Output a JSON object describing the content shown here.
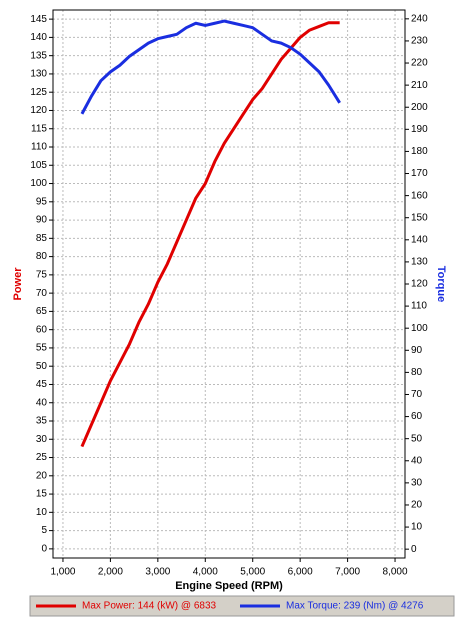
{
  "chart_data": {
    "type": "line",
    "xlabel": "Engine Speed (RPM)",
    "ylabel": "Power",
    "y2label": "Torque",
    "x": [
      1400,
      1600,
      1800,
      2000,
      2200,
      2400,
      2600,
      2800,
      3000,
      3200,
      3400,
      3600,
      3800,
      4000,
      4200,
      4400,
      4600,
      4800,
      5000,
      5200,
      5400,
      5600,
      5800,
      6000,
      6200,
      6400,
      6600,
      6833
    ],
    "series": [
      {
        "name": "Max Power: 144 (kW) @ 6833",
        "color": "#e00000",
        "axis": "y",
        "values": [
          28,
          34,
          40,
          46,
          51,
          56,
          62,
          67,
          73,
          78,
          84,
          90,
          96,
          100,
          106,
          111,
          115,
          119,
          123,
          126,
          130,
          134,
          137,
          140,
          142,
          143,
          144,
          144
        ]
      },
      {
        "name": "Max Torque: 239 (Nm) @ 4276",
        "color": "#1a2ee0",
        "axis": "y2",
        "values": [
          197,
          205,
          212,
          216,
          219,
          223,
          226,
          229,
          231,
          232,
          233,
          236,
          238,
          237,
          238,
          239,
          238,
          237,
          236,
          233,
          230,
          229,
          227,
          224,
          220,
          216,
          210,
          202
        ]
      }
    ],
    "xlim": [
      790,
      8210
    ],
    "xticks": [
      {
        "value": 1000,
        "label": "1,000"
      },
      {
        "value": 2000,
        "label": "2,000"
      },
      {
        "value": 3000,
        "label": "3,000"
      },
      {
        "value": 4000,
        "label": "4,000"
      },
      {
        "value": 5000,
        "label": "5,000"
      },
      {
        "value": 6000,
        "label": "6,000"
      },
      {
        "value": 7000,
        "label": "7,000"
      },
      {
        "value": 8000,
        "label": "8,000"
      }
    ],
    "ylim": [
      -2.5,
      147.5
    ],
    "yticks": [
      0,
      5,
      10,
      15,
      20,
      25,
      30,
      35,
      40,
      45,
      50,
      55,
      60,
      65,
      70,
      75,
      80,
      85,
      90,
      95,
      100,
      105,
      110,
      115,
      120,
      125,
      130,
      135,
      140,
      145
    ],
    "y2lim": [
      -4,
      244
    ],
    "y2ticks": [
      0,
      10,
      20,
      30,
      40,
      50,
      60,
      70,
      80,
      90,
      100,
      110,
      120,
      130,
      140,
      150,
      160,
      170,
      180,
      190,
      200,
      210,
      220,
      230,
      240
    ],
    "grid": true
  }
}
